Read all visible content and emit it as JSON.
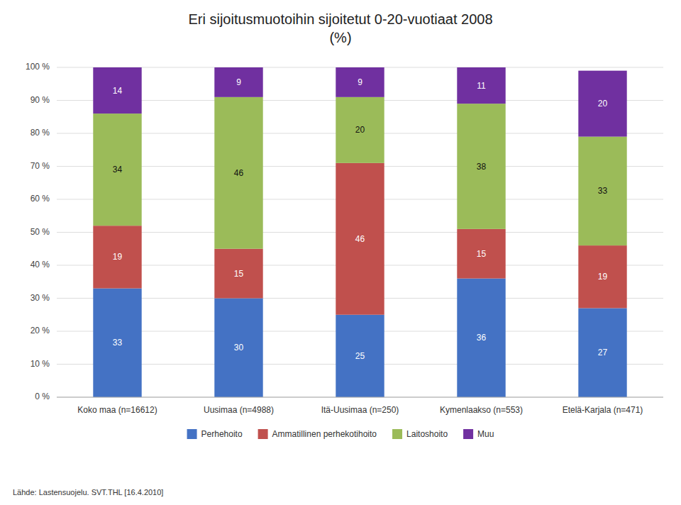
{
  "chart_data": {
    "type": "bar",
    "stacked": true,
    "title": "Eri sijoitusmuotoihin sijoitetut 0-20-vuotiaat  2008\n(%)",
    "source": "Lähde: Lastensuojelu. SVT.THL [16.4.2010]",
    "categories": [
      "Koko maa (n=16612)",
      "Uusimaa (n=4988)",
      "Itä-Uusimaa (n=250)",
      "Kymenlaakso (n=553)",
      "Etelä-Karjala (n=471)"
    ],
    "series": [
      {
        "name": "Perhehoito",
        "color": "#4472C4",
        "values": [
          33,
          30,
          25,
          36,
          27
        ]
      },
      {
        "name": "Ammatillinen perhekotihoito",
        "color": "#C0504D",
        "values": [
          19,
          15,
          46,
          15,
          19
        ]
      },
      {
        "name": "Laitoshoito",
        "color": "#9BBB59",
        "values": [
          34,
          46,
          20,
          38,
          33
        ]
      },
      {
        "name": "Muu",
        "color": "#7030A0",
        "values": [
          14,
          9,
          9,
          11,
          20
        ]
      }
    ],
    "ylim": [
      0,
      100
    ],
    "yticks": [
      {
        "value": 0,
        "label": "0 %"
      },
      {
        "value": 10,
        "label": "10 %"
      },
      {
        "value": 20,
        "label": "20 %"
      },
      {
        "value": 30,
        "label": "30 %"
      },
      {
        "value": 40,
        "label": "40 %"
      },
      {
        "value": 50,
        "label": "50 %"
      },
      {
        "value": 60,
        "label": "60 %"
      },
      {
        "value": 70,
        "label": "70 %"
      },
      {
        "value": 80,
        "label": "80 %"
      },
      {
        "value": 90,
        "label": "90 %"
      },
      {
        "value": 100,
        "label": "100 %"
      }
    ],
    "grid": true,
    "legend": "bottom",
    "data_labels": true
  }
}
